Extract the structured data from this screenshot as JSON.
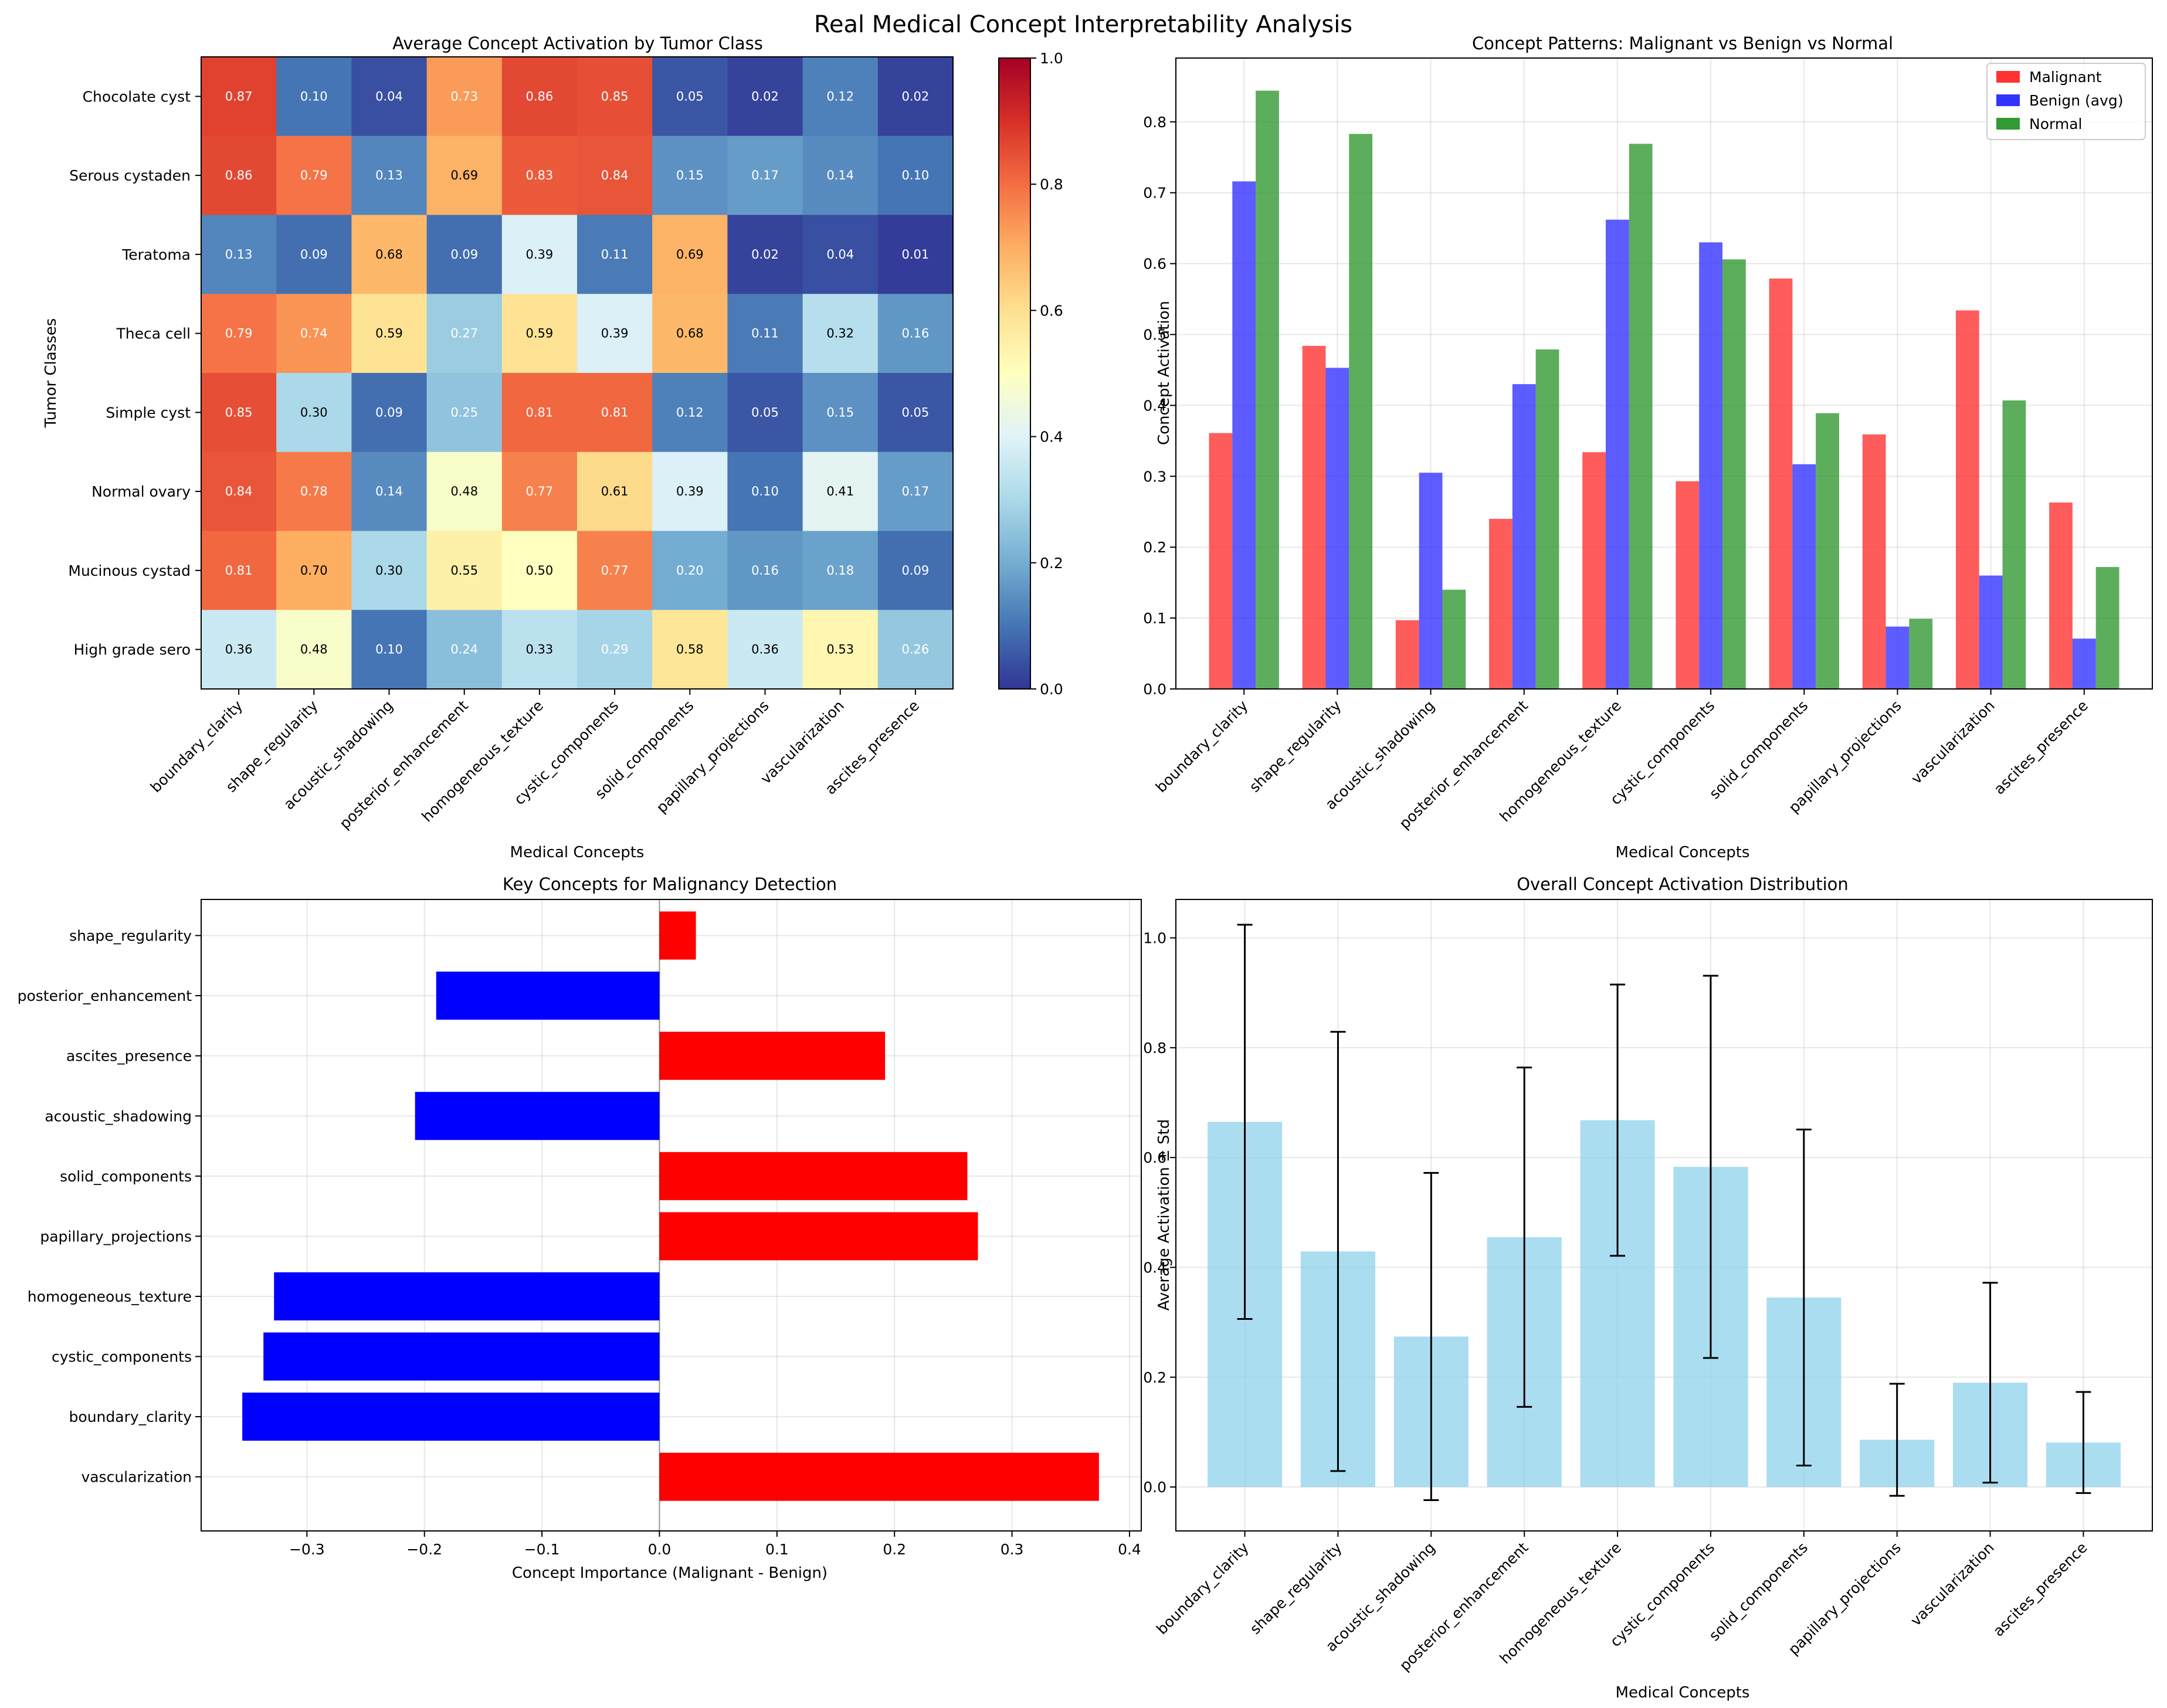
{
  "figure": {
    "suptitle": "Real Medical Concept Interpretability Analysis"
  },
  "concepts": [
    "boundary_clarity",
    "shape_regularity",
    "acoustic_shadowing",
    "posterior_enhancement",
    "homogeneous_texture",
    "cystic_components",
    "solid_components",
    "papillary_projections",
    "vascularization",
    "ascites_presence"
  ],
  "chart_data": [
    {
      "type": "heatmap",
      "title": "Average Concept Activation by Tumor Class",
      "xlabel": "Medical Concepts",
      "ylabel": "Tumor Classes",
      "rows": [
        "Chocolate cyst",
        "Serous cystaden",
        "Teratoma",
        "Theca cell",
        "Simple cyst",
        "Normal ovary",
        "Mucinous cystad",
        "High grade sero"
      ],
      "values": [
        [
          0.87,
          0.1,
          0.04,
          0.73,
          0.86,
          0.85,
          0.05,
          0.02,
          0.12,
          0.02
        ],
        [
          0.86,
          0.79,
          0.13,
          0.69,
          0.83,
          0.84,
          0.15,
          0.17,
          0.14,
          0.1
        ],
        [
          0.13,
          0.09,
          0.68,
          0.09,
          0.39,
          0.11,
          0.69,
          0.02,
          0.04,
          0.01
        ],
        [
          0.79,
          0.74,
          0.59,
          0.27,
          0.59,
          0.39,
          0.68,
          0.11,
          0.32,
          0.16
        ],
        [
          0.85,
          0.3,
          0.09,
          0.25,
          0.81,
          0.81,
          0.12,
          0.05,
          0.15,
          0.05
        ],
        [
          0.84,
          0.78,
          0.14,
          0.48,
          0.77,
          0.61,
          0.39,
          0.1,
          0.41,
          0.17
        ],
        [
          0.81,
          0.7,
          0.3,
          0.55,
          0.5,
          0.77,
          0.2,
          0.16,
          0.18,
          0.09
        ],
        [
          0.36,
          0.48,
          0.1,
          0.24,
          0.33,
          0.29,
          0.58,
          0.36,
          0.53,
          0.26
        ]
      ],
      "colormap": "RdYlBu_r",
      "colorbar": {
        "range": [
          0,
          1
        ],
        "ticks": [
          "0.0",
          "0.2",
          "0.4",
          "0.6",
          "0.8",
          "1.0"
        ]
      }
    },
    {
      "type": "bar",
      "title": "Concept Patterns: Malignant vs Benign vs Normal",
      "xlabel": "Medical Concepts",
      "ylabel": "Concept Activation",
      "ylim": [
        0,
        0.89
      ],
      "yticks": [
        "0.0",
        "0.1",
        "0.2",
        "0.3",
        "0.4",
        "0.5",
        "0.6",
        "0.7",
        "0.8"
      ],
      "legend": "top-right",
      "grid": true,
      "series": [
        {
          "name": "Malignant",
          "color": "#ff3333",
          "values": [
            0.361,
            0.484,
            0.097,
            0.24,
            0.334,
            0.293,
            0.579,
            0.359,
            0.534,
            0.263
          ]
        },
        {
          "name": "Benign (avg)",
          "color": "#3333ff",
          "values": [
            0.716,
            0.453,
            0.305,
            0.43,
            0.662,
            0.63,
            0.317,
            0.088,
            0.16,
            0.071
          ]
        },
        {
          "name": "Normal",
          "color": "#339933",
          "values": [
            0.844,
            0.783,
            0.14,
            0.479,
            0.769,
            0.606,
            0.389,
            0.099,
            0.407,
            0.172
          ]
        }
      ]
    },
    {
      "type": "bar",
      "orientation": "horizontal",
      "title": "Key Concepts for Malignancy Detection",
      "xlabel": "Concept Importance (Malignant - Benign)",
      "xlim": [
        -0.39,
        0.41
      ],
      "xticks": [
        "−0.3",
        "−0.2",
        "−0.1",
        "0.0",
        "0.1",
        "0.2",
        "0.3",
        "0.4"
      ],
      "grid": true,
      "categories": [
        "vascularization",
        "boundary_clarity",
        "cystic_components",
        "homogeneous_texture",
        "papillary_projections",
        "solid_components",
        "acoustic_shadowing",
        "ascites_presence",
        "posterior_enhancement",
        "shape_regularity"
      ],
      "values": [
        0.374,
        -0.355,
        -0.337,
        -0.328,
        0.271,
        0.262,
        -0.208,
        0.192,
        -0.19,
        0.031
      ],
      "colors": {
        "positive": "#ff0000",
        "negative": "#0000ff"
      }
    },
    {
      "type": "bar",
      "title": "Overall Concept Activation Distribution",
      "xlabel": "Medical Concepts",
      "ylabel": "Average Activation ± Std",
      "ylim": [
        -0.08,
        1.07
      ],
      "yticks": [
        "0.0",
        "0.2",
        "0.4",
        "0.6",
        "0.8",
        "1.0"
      ],
      "grid": true,
      "color": "#87ceeb",
      "values": [
        0.665,
        0.429,
        0.274,
        0.455,
        0.668,
        0.583,
        0.345,
        0.086,
        0.19,
        0.081
      ],
      "error": [
        0.359,
        0.4,
        0.298,
        0.309,
        0.247,
        0.348,
        0.306,
        0.102,
        0.182,
        0.092
      ]
    }
  ]
}
